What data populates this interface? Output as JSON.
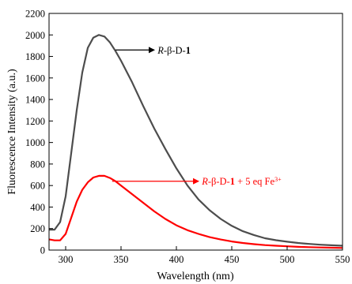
{
  "chart_data": {
    "type": "line",
    "title": "",
    "xlabel": "Wavelength (nm)",
    "ylabel": "Fluorescence Intensity (a.u.)",
    "xlim": [
      285,
      550
    ],
    "ylim": [
      0,
      2200
    ],
    "x_ticks": [
      300,
      350,
      400,
      450,
      500,
      550
    ],
    "y_ticks": [
      0,
      200,
      400,
      600,
      800,
      1000,
      1200,
      1400,
      1600,
      1800,
      2000,
      2200
    ],
    "grid": false,
    "legend": "none",
    "series": [
      {
        "name": "R-β-D-1",
        "color": "#4d4d4d",
        "points": [
          [
            285,
            190
          ],
          [
            290,
            190
          ],
          [
            295,
            260
          ],
          [
            300,
            500
          ],
          [
            305,
            900
          ],
          [
            310,
            1300
          ],
          [
            315,
            1650
          ],
          [
            320,
            1880
          ],
          [
            325,
            1975
          ],
          [
            330,
            2000
          ],
          [
            335,
            1985
          ],
          [
            340,
            1930
          ],
          [
            345,
            1850
          ],
          [
            350,
            1760
          ],
          [
            360,
            1560
          ],
          [
            370,
            1340
          ],
          [
            380,
            1130
          ],
          [
            390,
            940
          ],
          [
            400,
            760
          ],
          [
            410,
            600
          ],
          [
            420,
            470
          ],
          [
            430,
            370
          ],
          [
            440,
            290
          ],
          [
            450,
            225
          ],
          [
            460,
            175
          ],
          [
            470,
            140
          ],
          [
            480,
            110
          ],
          [
            490,
            92
          ],
          [
            500,
            78
          ],
          [
            510,
            66
          ],
          [
            520,
            57
          ],
          [
            530,
            50
          ],
          [
            540,
            45
          ],
          [
            550,
            40
          ]
        ]
      },
      {
        "name": "R-β-D-1 + 5 eq Fe3+",
        "color": "#ff0000",
        "points": [
          [
            285,
            100
          ],
          [
            290,
            90
          ],
          [
            295,
            90
          ],
          [
            300,
            150
          ],
          [
            305,
            300
          ],
          [
            310,
            450
          ],
          [
            315,
            560
          ],
          [
            320,
            630
          ],
          [
            325,
            675
          ],
          [
            330,
            690
          ],
          [
            335,
            690
          ],
          [
            340,
            670
          ],
          [
            345,
            640
          ],
          [
            350,
            600
          ],
          [
            360,
            520
          ],
          [
            370,
            440
          ],
          [
            380,
            360
          ],
          [
            390,
            290
          ],
          [
            400,
            230
          ],
          [
            410,
            185
          ],
          [
            420,
            150
          ],
          [
            430,
            120
          ],
          [
            440,
            98
          ],
          [
            450,
            80
          ],
          [
            460,
            66
          ],
          [
            470,
            55
          ],
          [
            480,
            46
          ],
          [
            490,
            40
          ],
          [
            500,
            35
          ],
          [
            510,
            30
          ],
          [
            520,
            27
          ],
          [
            530,
            24
          ],
          [
            540,
            22
          ],
          [
            550,
            20
          ]
        ]
      }
    ],
    "annotations": [
      {
        "series": 0,
        "arrow_from": [
          345,
          1860
        ],
        "arrow_to": [
          380,
          1860
        ],
        "label_parts": [
          {
            "text": "R",
            "italic": true
          },
          {
            "text": "-β-D-"
          },
          {
            "text": "1",
            "bold": true
          }
        ],
        "label_at": [
          383,
          1860
        ]
      },
      {
        "series": 1,
        "arrow_from": [
          342,
          640
        ],
        "arrow_to": [
          420,
          640
        ],
        "label_parts": [
          {
            "text": "R",
            "italic": true
          },
          {
            "text": "-β-D-"
          },
          {
            "text": "1",
            "bold": true
          },
          {
            "text": " + 5 eq Fe"
          },
          {
            "text": "3+",
            "sup": true
          }
        ],
        "label_at": [
          423,
          640
        ]
      }
    ]
  }
}
